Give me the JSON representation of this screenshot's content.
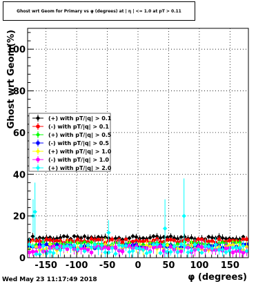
{
  "chart_data": {
    "type": "scatter",
    "title": "Ghost wrt Geom for Primary vs φ (degrees) at | η | <= 1.0 at pT > 0.11",
    "xlabel": "φ (degrees)",
    "ylabel": "Ghost wrt Geom(%)",
    "xlim": [
      -180,
      180
    ],
    "ylim": [
      0,
      110
    ],
    "xticks": [
      -150,
      -100,
      -50,
      0,
      50,
      100,
      150
    ],
    "yticks": [
      0,
      20,
      40,
      60,
      80,
      100
    ],
    "grid": true,
    "legend_position": "left-middle",
    "series": [
      {
        "name": "(+) with pT/|q| > 0.1",
        "color": "#000000",
        "marker": "diamond",
        "base": 9.5,
        "amp": 0.8
      },
      {
        "name": "(-) with pT/|q| > 0.1",
        "color": "#ff0000",
        "marker": "circle",
        "base": 8.0,
        "amp": 0.9
      },
      {
        "name": "(+) with pT/|q| > 0.5",
        "color": "#00ff00",
        "marker": "diamond",
        "base": 6.5,
        "amp": 1.0
      },
      {
        "name": "(-) with pT/|q| > 0.5",
        "color": "#0000ff",
        "marker": "circle",
        "base": 5.5,
        "amp": 1.0
      },
      {
        "name": "(+) with pT/|q| > 1.0",
        "color": "#ffff00",
        "marker": "diamond",
        "base": 5.0,
        "amp": 1.4
      },
      {
        "name": "(-) with pT/|q| > 1.0",
        "color": "#ff00ff",
        "marker": "circle",
        "base": 4.0,
        "amp": 1.6
      },
      {
        "name": "(+) with pT/|q| > 2.0",
        "color": "#00ffff",
        "marker": "diamond",
        "base": 4.0,
        "amp": 2.5,
        "outliers": [
          {
            "x": -168,
            "y": 22,
            "err": 14
          },
          {
            "x": -171,
            "y": 20,
            "err": 8
          },
          {
            "x": -48,
            "y": 12,
            "err": 6
          },
          {
            "x": 44,
            "y": 14,
            "err": 14
          },
          {
            "x": 75,
            "y": 20,
            "err": 18
          }
        ]
      }
    ]
  },
  "footer": {
    "timestamp": "Wed May 23 11:17:49 2018"
  }
}
